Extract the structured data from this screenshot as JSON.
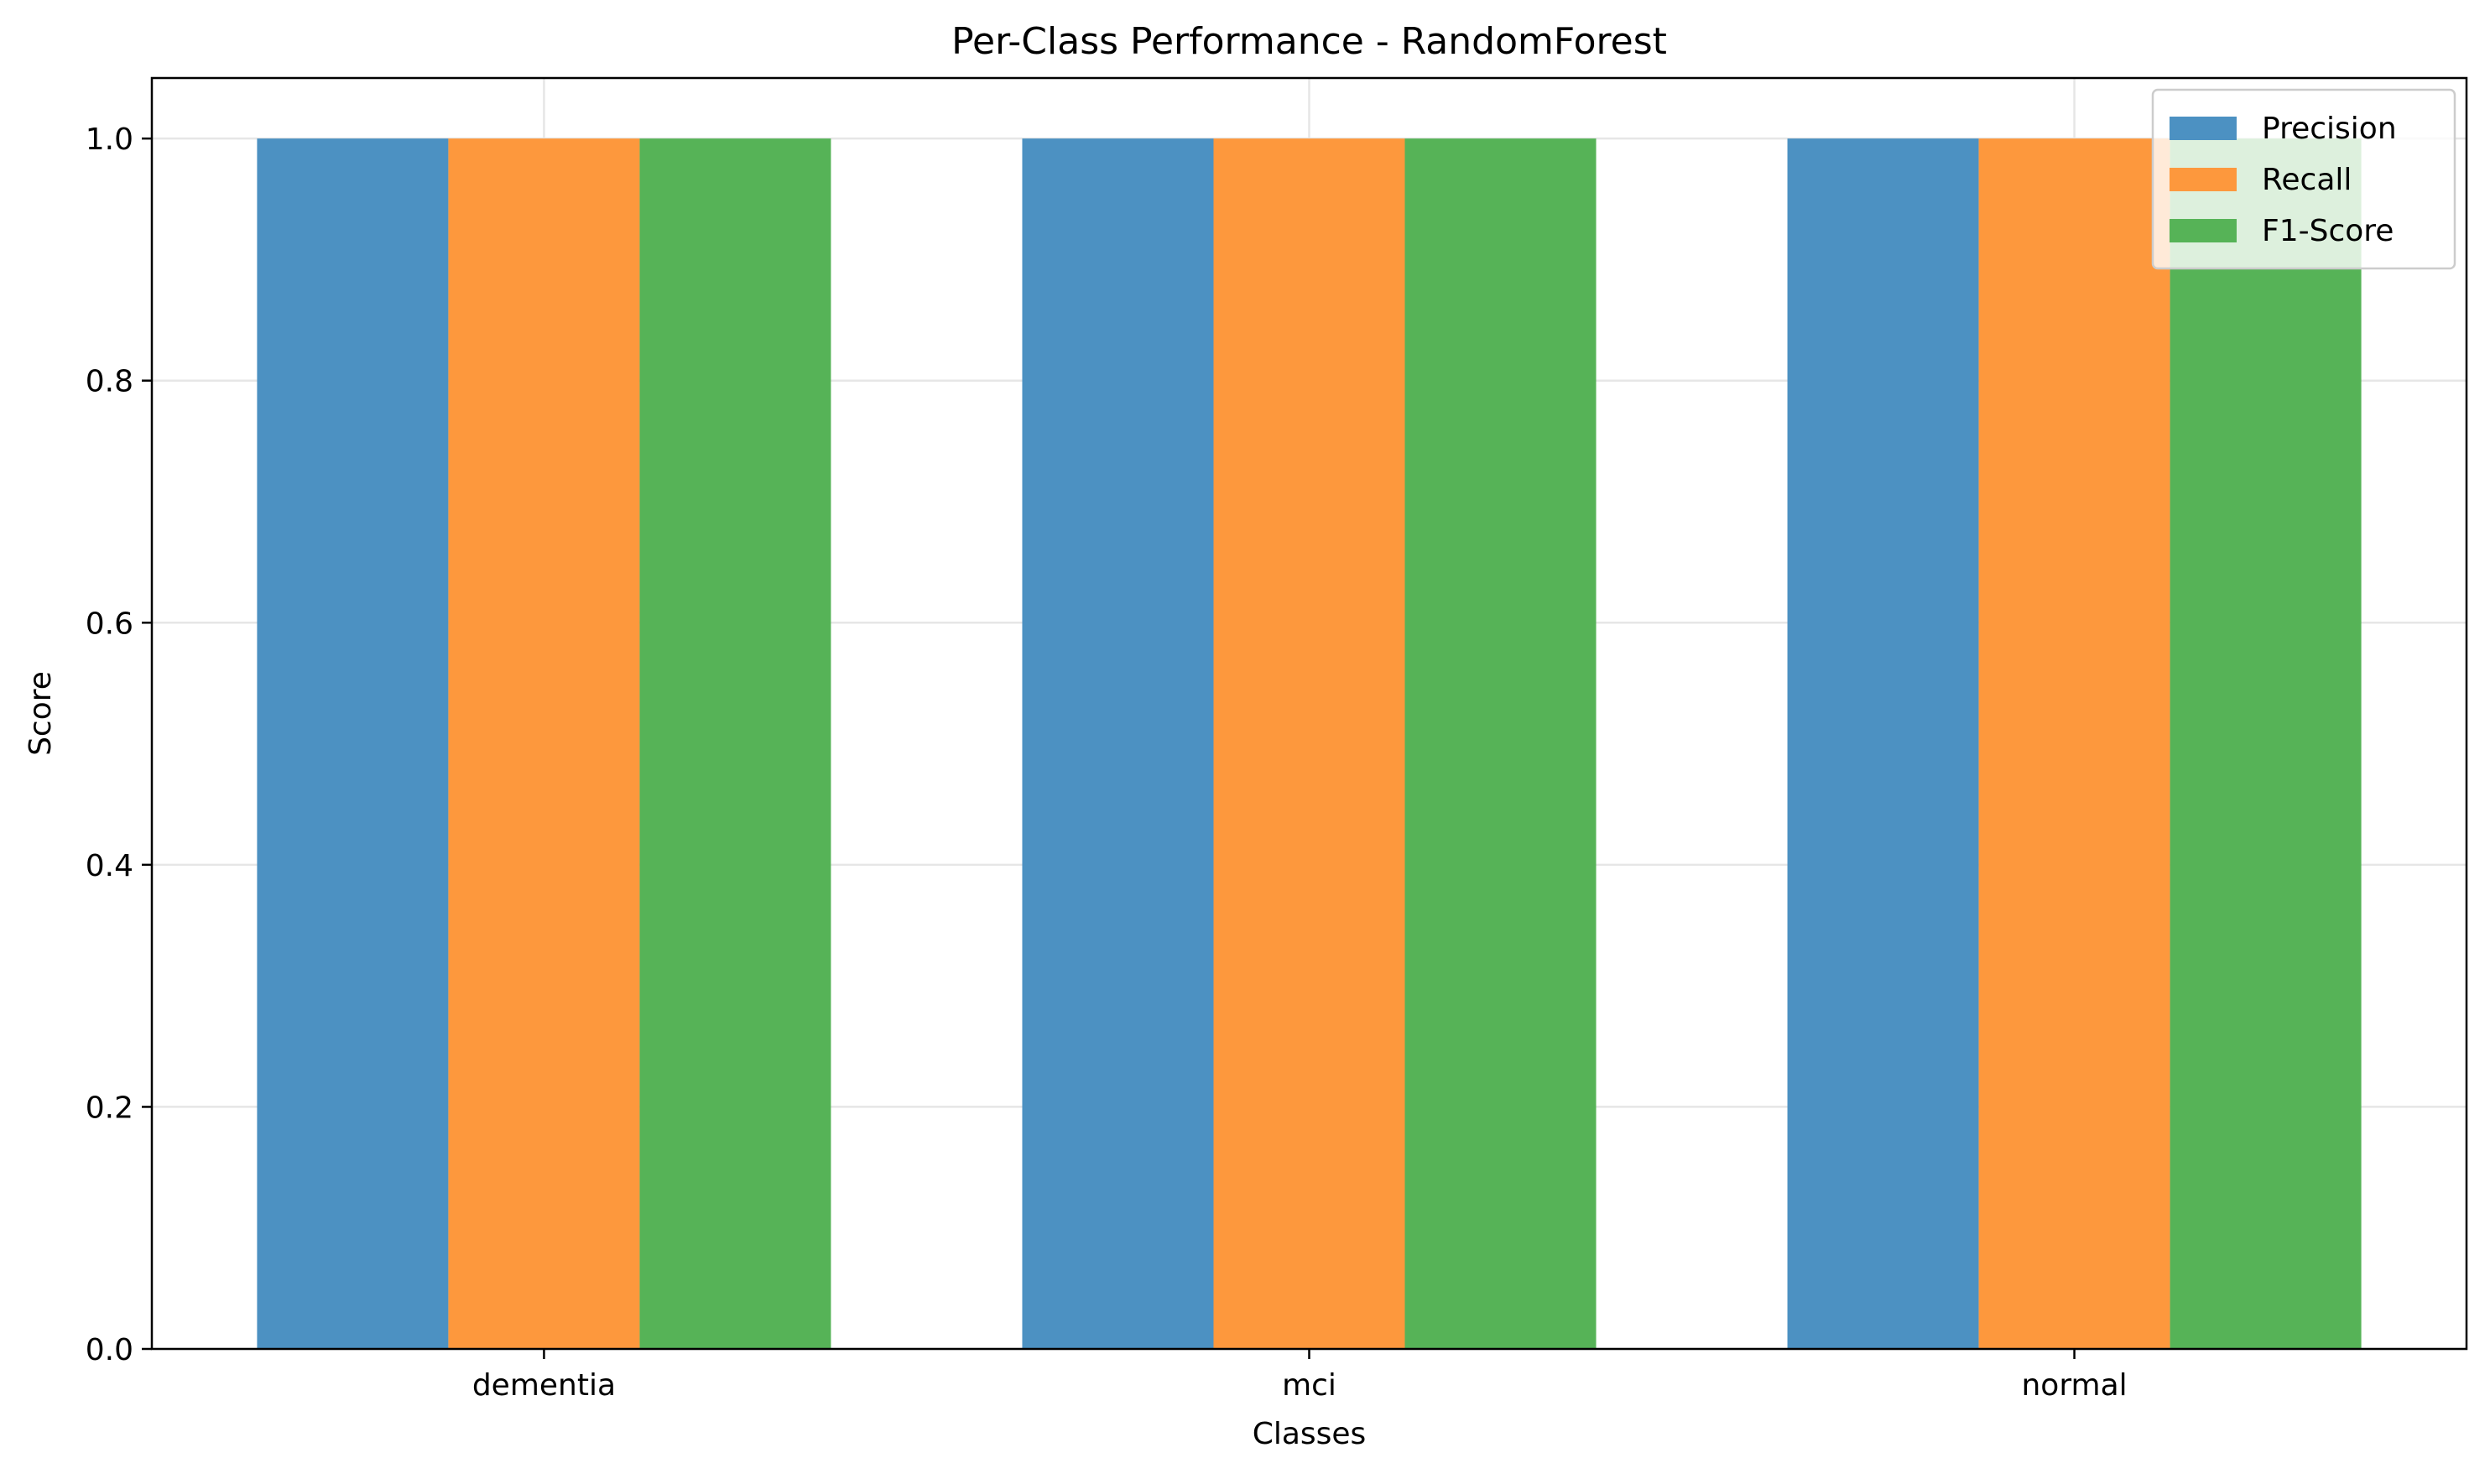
{
  "chart_data": {
    "type": "bar",
    "title": "Per-Class Performance - RandomForest",
    "xlabel": "Classes",
    "ylabel": "Score",
    "categories": [
      "dementia",
      "mci",
      "normal"
    ],
    "series": [
      {
        "name": "Precision",
        "values": [
          1.0,
          1.0,
          1.0
        ],
        "color": "#4c91c2"
      },
      {
        "name": "Recall",
        "values": [
          1.0,
          1.0,
          1.0
        ],
        "color": "#fd983d"
      },
      {
        "name": "F1-Score",
        "values": [
          1.0,
          1.0,
          1.0
        ],
        "color": "#56b357"
      }
    ],
    "ylim": [
      0.0,
      1.05
    ],
    "yticks": [
      "0.0",
      "0.2",
      "0.4",
      "0.6",
      "0.8",
      "1.0"
    ],
    "grid": true,
    "legend_position": "top-right"
  }
}
